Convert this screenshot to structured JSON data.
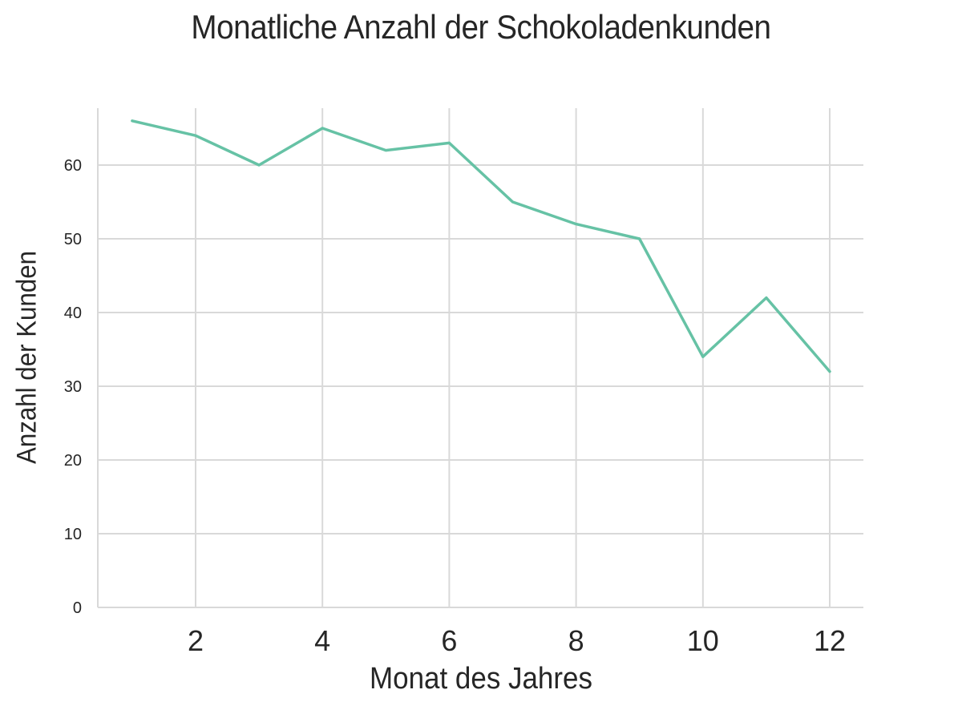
{
  "chart_data": {
    "type": "line",
    "title": "Monatliche Anzahl der Schokoladenkunden",
    "xlabel": "Monat des Jahres",
    "ylabel": "Anzahl der Kunden",
    "x": [
      1,
      2,
      3,
      4,
      5,
      6,
      7,
      8,
      9,
      10,
      11,
      12
    ],
    "series": [
      {
        "name": "Kunden",
        "values": [
          66,
          64,
          60,
          65,
          62,
          63,
          55,
          52,
          50,
          34,
          42,
          32
        ],
        "color": "#66c2a5"
      }
    ],
    "xticks": [
      2,
      4,
      6,
      8,
      10,
      12
    ],
    "yticks": [
      0,
      10,
      20,
      30,
      40,
      50,
      60
    ],
    "xlim": [
      0.3,
      12.5
    ],
    "ylim": [
      0,
      68
    ],
    "grid": true,
    "legend": null
  },
  "style": {
    "line_color": "#66c2a5",
    "grid_color": "#d9d9d9",
    "text_color": "#262626"
  }
}
